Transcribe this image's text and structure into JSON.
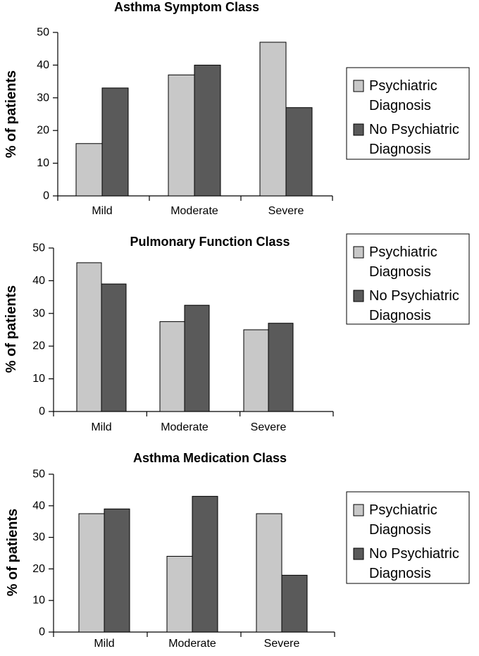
{
  "chart_data": [
    {
      "type": "bar",
      "title": "Asthma Symptom Class",
      "ylabel": "% of patients",
      "ylim": [
        0,
        50
      ],
      "yticks": [
        0,
        10,
        20,
        30,
        40,
        50
      ],
      "categories": [
        "Mild",
        "Moderate",
        "Severe"
      ],
      "series": [
        {
          "name": "Psychiatric Diagnosis",
          "color": "#c8c8c8",
          "values": [
            16,
            37,
            47
          ]
        },
        {
          "name": "No Psychiatric Diagnosis",
          "color": "#5a5a5a",
          "values": [
            33,
            40,
            27
          ]
        }
      ],
      "legend_position": "right"
    },
    {
      "type": "bar",
      "title": "Pulmonary Function Class",
      "ylabel": "% of patients",
      "ylim": [
        0,
        50
      ],
      "yticks": [
        0,
        10,
        20,
        30,
        40,
        50
      ],
      "categories": [
        "Mild",
        "Moderate",
        "Severe"
      ],
      "series": [
        {
          "name": "Psychiatric Diagnosis",
          "color": "#c8c8c8",
          "values": [
            45.5,
            27.5,
            25
          ]
        },
        {
          "name": "No Psychiatric Diagnosis",
          "color": "#5a5a5a",
          "values": [
            39,
            32.5,
            27
          ]
        }
      ],
      "legend_position": "top-right"
    },
    {
      "type": "bar",
      "title": "Asthma Medication Class",
      "ylabel": "% of patients",
      "ylim": [
        0,
        50
      ],
      "yticks": [
        0,
        10,
        20,
        30,
        40,
        50
      ],
      "categories": [
        "Mild",
        "Moderate",
        "Severe"
      ],
      "series": [
        {
          "name": "Psychiatric Diagnosis",
          "color": "#c8c8c8",
          "values": [
            37.5,
            24,
            37.5
          ]
        },
        {
          "name": "No Psychiatric Diagnosis",
          "color": "#5a5a5a",
          "values": [
            39,
            43,
            18
          ]
        }
      ],
      "legend_position": "right"
    }
  ],
  "legend_lines": [
    [
      "Psychiatric",
      "Diagnosis"
    ],
    [
      "No Psychiatric",
      "Diagnosis"
    ]
  ]
}
